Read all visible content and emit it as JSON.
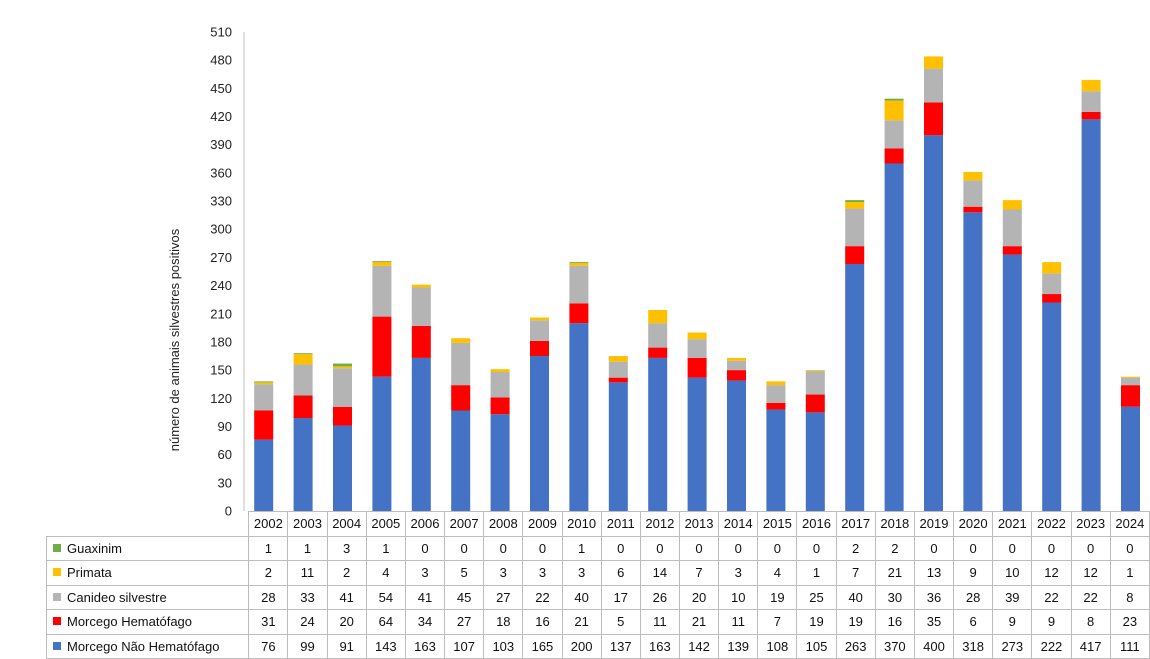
{
  "chart_data": {
    "type": "bar",
    "stacked": true,
    "ylabel": "número de animais silvestres positivos",
    "ylim": [
      0,
      510
    ],
    "yticks": [
      0,
      30,
      60,
      90,
      120,
      150,
      180,
      210,
      240,
      270,
      300,
      330,
      360,
      390,
      420,
      450,
      480,
      510
    ],
    "grid": false,
    "legend": "data-table-below",
    "categories": [
      "2002",
      "2003",
      "2004",
      "2005",
      "2006",
      "2007",
      "2008",
      "2009",
      "2010",
      "2011",
      "2012",
      "2013",
      "2014",
      "2015",
      "2016",
      "2017",
      "2018",
      "2019",
      "2020",
      "2021",
      "2022",
      "2023",
      "2024"
    ],
    "series": [
      {
        "name": "Morcego Não Hematófago",
        "color": "#4472c4",
        "values": [
          76,
          99,
          91,
          143,
          163,
          107,
          103,
          165,
          200,
          137,
          163,
          142,
          139,
          108,
          105,
          263,
          370,
          400,
          318,
          273,
          222,
          417,
          111
        ]
      },
      {
        "name": "Morcego Hematófago",
        "color": "#ff0000",
        "values": [
          31,
          24,
          20,
          64,
          34,
          27,
          18,
          16,
          21,
          5,
          11,
          21,
          11,
          7,
          19,
          19,
          16,
          35,
          6,
          9,
          9,
          8,
          23
        ]
      },
      {
        "name": "Canideo silvestre",
        "color": "#b4b4b4",
        "values": [
          28,
          33,
          41,
          54,
          41,
          45,
          27,
          22,
          40,
          17,
          26,
          20,
          10,
          19,
          25,
          40,
          30,
          36,
          28,
          39,
          22,
          22,
          8
        ]
      },
      {
        "name": "Primata",
        "color": "#ffc000",
        "values": [
          2,
          11,
          2,
          4,
          3,
          5,
          3,
          3,
          3,
          6,
          14,
          7,
          3,
          4,
          1,
          7,
          21,
          13,
          9,
          10,
          12,
          12,
          1
        ]
      },
      {
        "name": "Guaxinim",
        "color": "#70ad47",
        "values": [
          1,
          1,
          3,
          1,
          0,
          0,
          0,
          0,
          1,
          0,
          0,
          0,
          0,
          0,
          0,
          2,
          2,
          0,
          0,
          0,
          0,
          0,
          0
        ]
      }
    ],
    "table_row_order": [
      "Guaxinim",
      "Primata",
      "Canideo silvestre",
      "Morcego Hematófago",
      "Morcego Não Hematófago"
    ]
  }
}
